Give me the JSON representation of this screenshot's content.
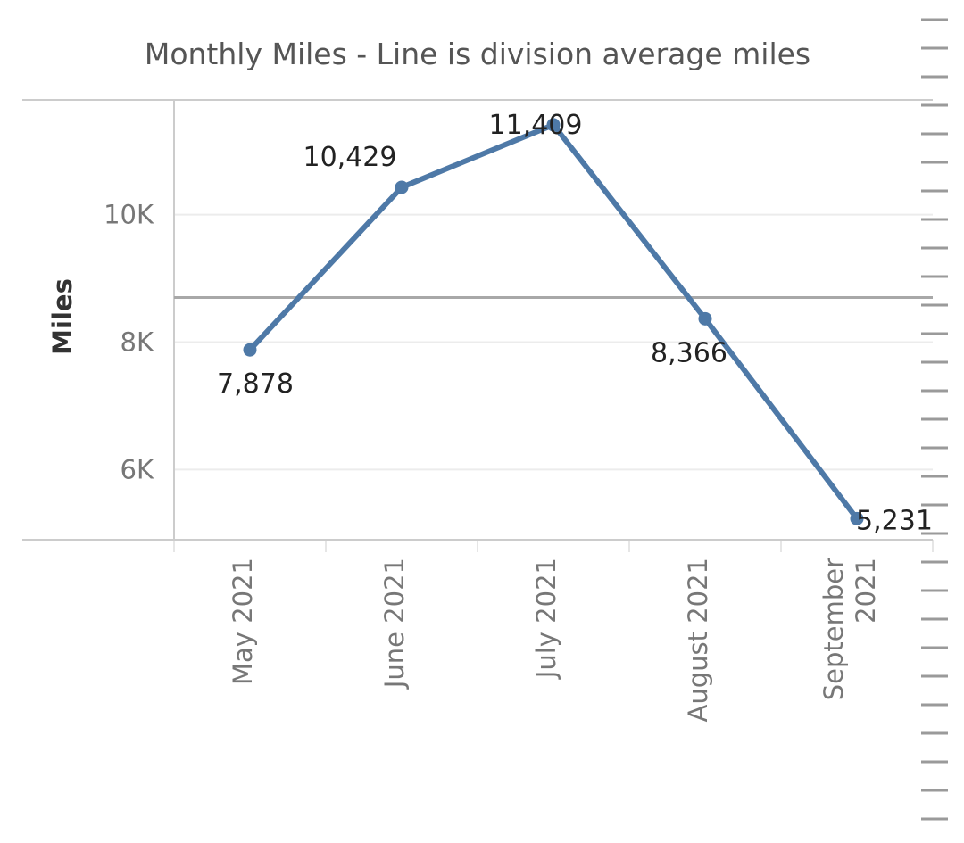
{
  "chart_data": {
    "type": "line",
    "title": "Monthly Miles - Line is division average miles",
    "xlabel": "",
    "ylabel": "Miles",
    "categories": [
      "May 2021",
      "June 2021",
      "July 2021",
      "August 2021",
      "September 2021"
    ],
    "category_lines": [
      [
        "May 2021"
      ],
      [
        "June 2021"
      ],
      [
        "July 2021"
      ],
      [
        "August 2021"
      ],
      [
        "September",
        "2021"
      ]
    ],
    "series": [
      {
        "name": "Miles",
        "values": [
          7878,
          10429,
          11409,
          8366,
          5231
        ]
      }
    ],
    "data_labels": [
      "7,878",
      "10,429",
      "11,409",
      "8,366",
      "5,231"
    ],
    "reference_line": {
      "label": "division average miles",
      "value": 8700
    },
    "yticks": [
      6000,
      8000,
      10000
    ],
    "ytick_labels": [
      "6K",
      "8K",
      "10K"
    ],
    "ylim": [
      4900,
      11800
    ],
    "gridlines": true,
    "colors": {
      "line": "#4e79a7",
      "reference": "#a8a8a8",
      "grid": "#ececec",
      "axis": "#cccccc"
    }
  }
}
